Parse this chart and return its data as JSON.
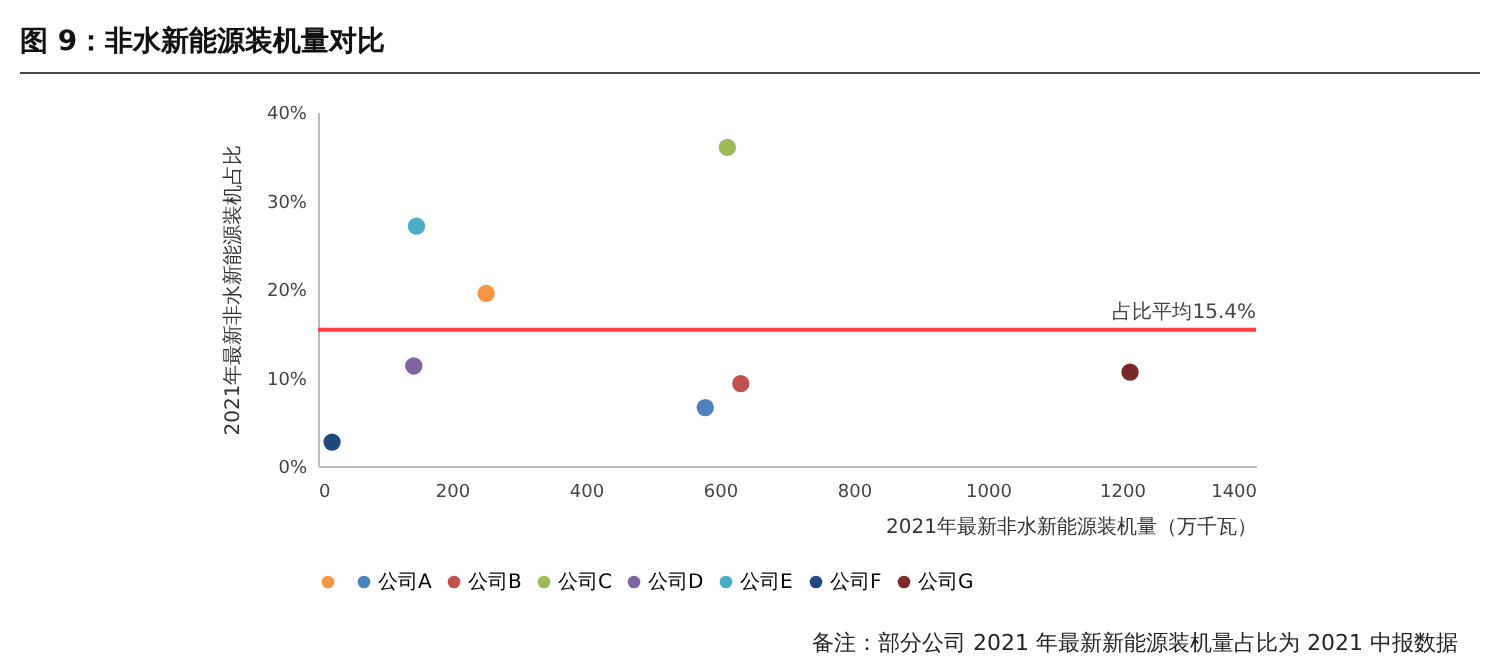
{
  "chart_data": {
    "type": "scatter",
    "title": "图 9：非水新能源装机量对比",
    "xlabel": "2021年最新非水新能源装机量（万千瓦）",
    "ylabel": "2021年最新非水新能源装机占比",
    "series": [
      {
        "name": null,
        "color": "#f79646",
        "x": [
          251
        ],
        "values": [
          19.5
        ]
      },
      {
        "name": "公司A",
        "color": "#4f81bd",
        "x": [
          578
        ],
        "values": [
          6.6
        ]
      },
      {
        "name": "公司B",
        "color": "#c0504d",
        "x": [
          631
        ],
        "values": [
          9.3
        ]
      },
      {
        "name": "公司C",
        "color": "#9bbb59",
        "x": [
          611
        ],
        "values": [
          36.0
        ]
      },
      {
        "name": "公司D",
        "color": "#8064a2",
        "x": [
          143
        ],
        "values": [
          11.3
        ]
      },
      {
        "name": "公司E",
        "color": "#4bacc6",
        "x": [
          147
        ],
        "values": [
          27.1
        ]
      },
      {
        "name": "公司F",
        "color": "#1f497d",
        "x": [
          21
        ],
        "values": [
          2.7
        ]
      },
      {
        "name": "公司G",
        "color": "#772c2a",
        "x": [
          1212
        ],
        "values": [
          10.6
        ]
      }
    ],
    "xlim": [
      0,
      1400
    ],
    "xticks": [
      0,
      200,
      400,
      600,
      800,
      1000,
      1200,
      1400
    ],
    "ylim": [
      0,
      40
    ],
    "yticks": [
      {
        "value": 0,
        "label": "0%"
      },
      {
        "value": 10,
        "label": "10%"
      },
      {
        "value": 20,
        "label": "20%"
      },
      {
        "value": 30,
        "label": "30%"
      },
      {
        "value": 40,
        "label": "40%"
      }
    ],
    "ref_lines": [
      {
        "axis": "y",
        "value": 15.4,
        "label": "占比平均15.4%",
        "color": "#ff3b3b"
      }
    ],
    "annotations": [
      "备注：部分公司 2021 年最新新能源装机量占比为 2021 中报数据"
    ],
    "marker": "circle",
    "grid": false,
    "legend": "bottom"
  }
}
